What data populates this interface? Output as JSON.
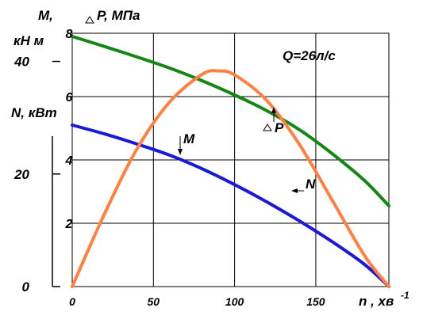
{
  "chart_data": {
    "type": "line",
    "xlabel": "n , хв",
    "xlabel_sup": "-1",
    "x_ticks": [
      "0",
      "50",
      "100",
      "150"
    ],
    "xlim": [
      0,
      195
    ],
    "axes": {
      "M_DP": {
        "ylabel_M_line1": "M,",
        "ylabel_M_line2": "кН м",
        "ylabel_dp": "P, МПа",
        "ticks": [
          "2",
          "4",
          "6",
          "8"
        ],
        "ylim": [
          0,
          8
        ]
      },
      "N": {
        "ylabel": "N, кВт",
        "ticks": [
          "0",
          "20",
          "40"
        ],
        "ylim": [
          0,
          45
        ]
      }
    },
    "annotation": "Q=26л/с",
    "series": [
      {
        "name": "M",
        "axis": "M_DP",
        "color": "#1a1ad6",
        "x": [
          0,
          20,
          40,
          60,
          80,
          100,
          120,
          140,
          160,
          180,
          195
        ],
        "y": [
          5.1,
          4.82,
          4.5,
          4.15,
          3.72,
          3.22,
          2.67,
          2.07,
          1.42,
          0.7,
          0.0
        ]
      },
      {
        "name": "N",
        "axis": "N_axis",
        "color": "#ff8040",
        "x": [
          0,
          20,
          40,
          60,
          80,
          90,
          100,
          120,
          140,
          160,
          180,
          195
        ],
        "y": [
          0,
          13.0,
          24.5,
          32.8,
          37.7,
          38.3,
          37.6,
          33.0,
          25.2,
          15.4,
          5.5,
          0
        ]
      },
      {
        "name": "P",
        "axis": "M_DP",
        "color": "#138613",
        "x": [
          0,
          20,
          40,
          60,
          80,
          100,
          120,
          140,
          160,
          180,
          195
        ],
        "y": [
          7.9,
          7.58,
          7.25,
          6.9,
          6.5,
          6.05,
          5.55,
          4.95,
          4.2,
          3.35,
          2.55
        ]
      }
    ],
    "labels": {
      "M": "M",
      "N": "N",
      "P": "P"
    },
    "grid": true
  }
}
